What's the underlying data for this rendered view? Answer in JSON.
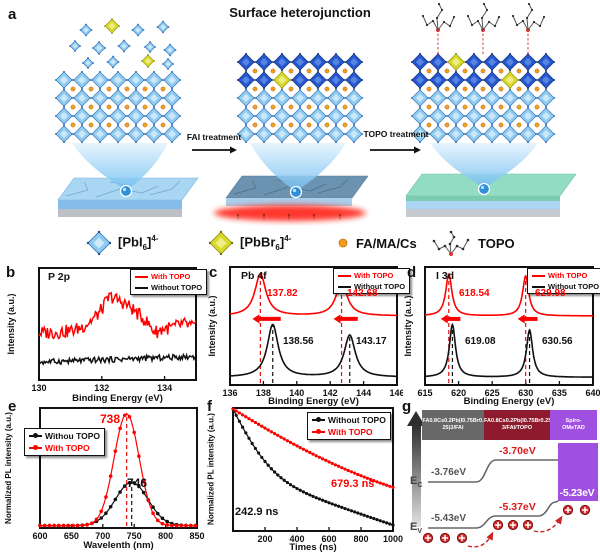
{
  "figure": {
    "background": "#ffffff"
  },
  "panel_a": {
    "label": "a",
    "title": "Surface heterojunction",
    "fai_arrow_label": "FAI treatment",
    "topo_arrow_label": "TOPO treatment",
    "legend": [
      {
        "icon": "pbi6-octahedron-icon",
        "pre": "[PbI",
        "sub": "6",
        "post": "]",
        "sup": "4-",
        "color": "#8fcbf0"
      },
      {
        "icon": "pbbr6-octahedron-icon",
        "pre": "[PbBr",
        "sub": "6",
        "post": "]",
        "sup": "4-",
        "color": "#d9d92a"
      },
      {
        "icon": "cation-dot-icon",
        "label": "FA/MA/Cs",
        "color": "#f59c20"
      },
      {
        "icon": "topo-molecule-icon",
        "label": "TOPO"
      }
    ]
  },
  "chart_data": [
    {
      "panel": "b",
      "type": "line",
      "title": "P 2p",
      "xlabel": "Binding Energy (eV)",
      "ylabel": "Intensity (a.u.)",
      "xlim": [
        130,
        135
      ],
      "xticks": [
        130,
        132,
        134
      ],
      "grid": false,
      "legend_position": "top-right",
      "series": [
        {
          "name": "With TOPO",
          "color": "#ff0000",
          "shape": "noisy broad P 2p peak",
          "peak_center": 132.5
        },
        {
          "name": "Without TOPO",
          "color": "#111111",
          "shape": "flat noisy baseline, no P 2p signal"
        }
      ]
    },
    {
      "panel": "c",
      "type": "line",
      "title": "Pb 4f",
      "xlabel": "Binding Energy (eV)",
      "ylabel": "Intensity (a.u.)",
      "xlim": [
        136,
        146
      ],
      "xticks": [
        136,
        138,
        140,
        142,
        144,
        146
      ],
      "legend_position": "top-right",
      "shift_note": "red arrows: shift to lower binding energy with TOPO",
      "series": [
        {
          "name": "With TOPO",
          "color": "#ff0000",
          "peaks": [
            {
              "center": 137.82,
              "label": "137.82"
            },
            {
              "center": 142.68,
              "label": "142.68"
            }
          ]
        },
        {
          "name": "Without TOPO",
          "color": "#111111",
          "peaks": [
            {
              "center": 138.56,
              "label": "138.56"
            },
            {
              "center": 143.17,
              "label": "143.17"
            }
          ]
        }
      ]
    },
    {
      "panel": "d",
      "type": "line",
      "title": "I 3d",
      "xlabel": "Binding Energy (eV)",
      "ylabel": "Intensity (a.u.)",
      "xlim": [
        615,
        640
      ],
      "xticks": [
        615,
        620,
        625,
        630,
        635,
        640
      ],
      "legend_position": "top-right",
      "shift_note": "red arrows: shift to lower binding energy with TOPO",
      "series": [
        {
          "name": "With TOPO",
          "color": "#ff0000",
          "peaks": [
            {
              "center": 618.54,
              "label": "618.54"
            },
            {
              "center": 629.98,
              "label": "629.98"
            }
          ]
        },
        {
          "name": "Without TOPO",
          "color": "#111111",
          "peaks": [
            {
              "center": 619.08,
              "label": "619.08"
            },
            {
              "center": 630.56,
              "label": "630.56"
            }
          ]
        }
      ]
    },
    {
      "panel": "e",
      "type": "line",
      "xlabel": "Wavelenth (nm)",
      "ylabel": "Normalized PL intensity (a.u.)",
      "xlim": [
        600,
        850
      ],
      "xticks": [
        600,
        650,
        700,
        750,
        800,
        850
      ],
      "ylim": [
        0,
        1
      ],
      "legend_position": "upper-left",
      "series": [
        {
          "name": "Withou TOPO",
          "color": "#111111",
          "marker": "circle",
          "peak_center": 746,
          "peak_label": "746",
          "peak_height": 0.4
        },
        {
          "name": "With TOPO",
          "color": "#ff0000",
          "marker": "circle",
          "peak_center": 738,
          "peak_label": "738",
          "peak_height": 1.0
        }
      ]
    },
    {
      "panel": "f",
      "type": "line",
      "xlabel": "Times (ns)",
      "ylabel": "Normalized PL intensity (a.u.)",
      "yscale": "log",
      "xlim": [
        0,
        1000
      ],
      "xticks": [
        200,
        400,
        600,
        800,
        1000
      ],
      "legend_position": "top-right",
      "series": [
        {
          "name": "Without TOPO",
          "color": "#111111",
          "marker": "circle",
          "lifetime_label": "242.9 ns",
          "lifetime_ns": 242.9
        },
        {
          "name": "With TOPO",
          "color": "#ff0000",
          "marker": "circle",
          "lifetime_label": "679.3 ns",
          "lifetime_ns": 679.3
        }
      ]
    },
    {
      "panel": "g",
      "type": "energy-level-diagram",
      "layers": [
        "FA0.8Cs0.2Pb(I0.75Br0.25)3/FAI",
        "FA0.8Cs0.2Pb(I0.75Br0.25)3/FAI/TOPO",
        "Spiro-OMeTAD"
      ],
      "conduction_band_eV": [
        -3.76,
        -3.7
      ],
      "valence_band_eV": [
        -5.43,
        -5.37
      ],
      "spiro_homo_eV": -5.23,
      "carrier_note": "holes transfer along valence band toward Spiro-OMeTAD (red dashed arrows)"
    }
  ],
  "panel_g": {
    "label": "g",
    "boxes": [
      {
        "line1": "FA0.8Cs0.2Pb(I0.75Br0.",
        "line2": "25)3/FAI",
        "color": "#686868"
      },
      {
        "line1": "FA0.8Cs0.2Pb(I0.75Br0.25)",
        "line2": "3/FAI/TOPO",
        "color": "#8e1b2d"
      },
      {
        "line1": "Spiro-",
        "line2": "OMeTAD",
        "color": "#a050e0"
      }
    ],
    "ec": {
      "base": "E",
      "sub": "C"
    },
    "ev": {
      "base": "E",
      "sub": "V"
    },
    "levels": {
      "ec_left": "-3.76eV",
      "ec_mid": "-3.70eV",
      "ev_left": "-5.43eV",
      "ev_mid": "-5.37eV",
      "spiro_homo": "-5.23eV"
    }
  }
}
